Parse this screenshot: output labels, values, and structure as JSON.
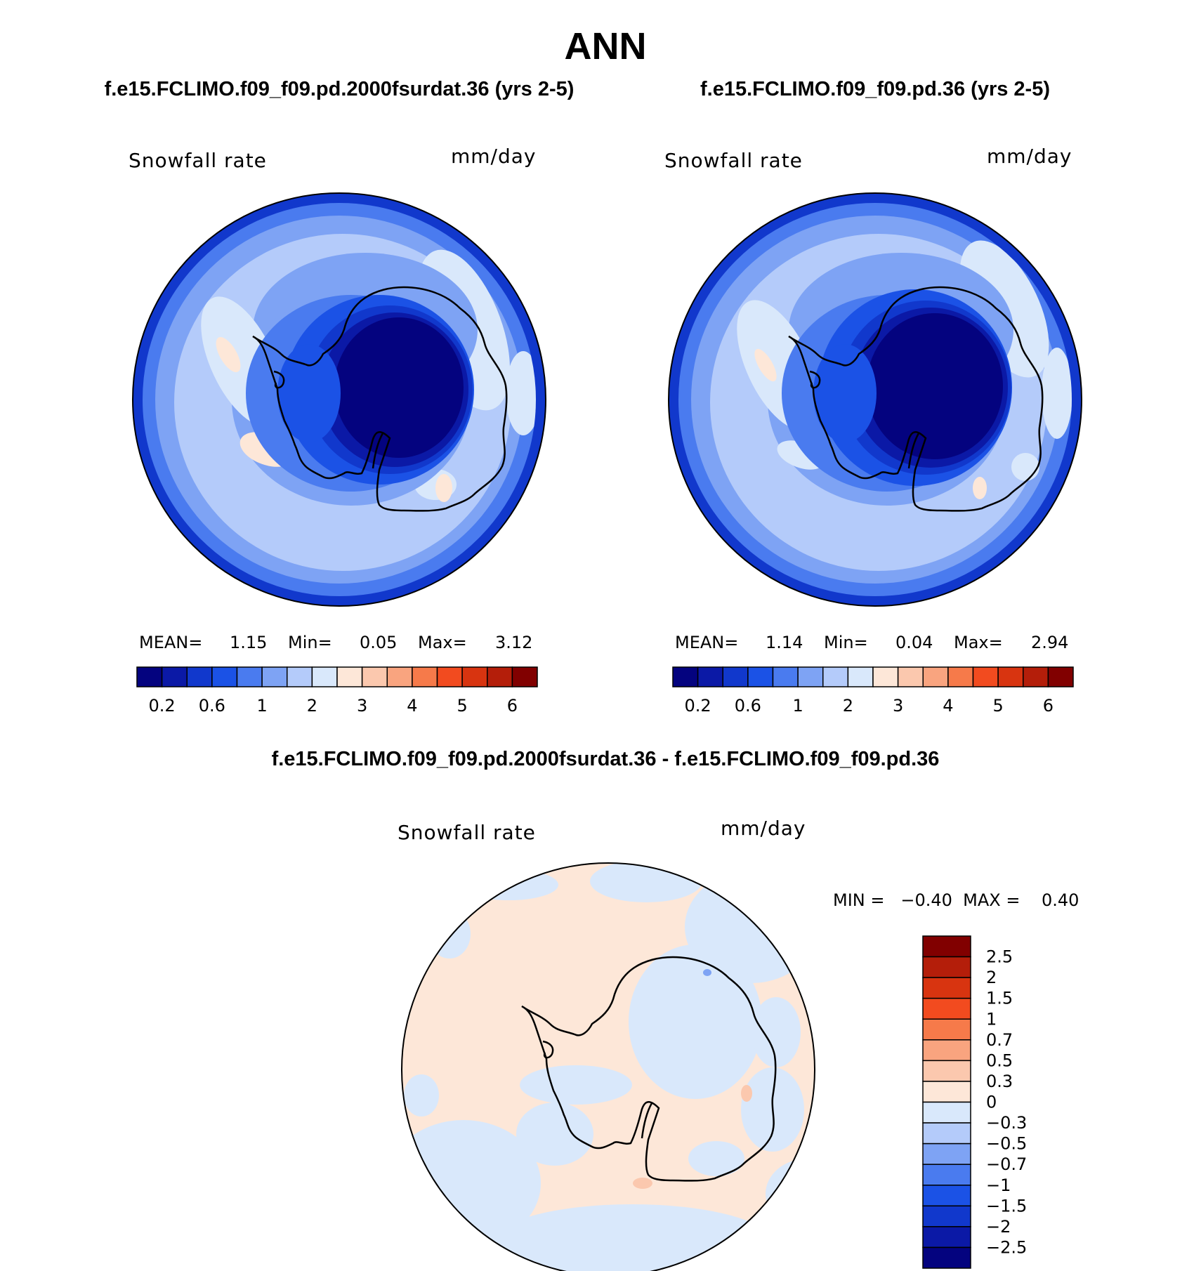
{
  "page": {
    "title": "ANN"
  },
  "chart_data": [
    {
      "type": "heatmap",
      "projection": "south-polar-stereographic",
      "title": "f.e15.FCLIMO.f09_f09.pd.2000fsurdat.36 (yrs 2-5)",
      "variable_label": "Snowfall rate",
      "units_label": "mm/day",
      "stats": [
        {
          "label": "MEAN=",
          "value": "1.15"
        },
        {
          "label": "Min=",
          "value": "0.05"
        },
        {
          "label": "Max=",
          "value": "3.12"
        }
      ],
      "colorbar": {
        "orientation": "horizontal",
        "levels": [
          0.1,
          0.2,
          0.4,
          0.6,
          0.8,
          1,
          1.5,
          2,
          2.5,
          3,
          3.5,
          4,
          4.5,
          5,
          5.5,
          6
        ],
        "tick_labels": [
          "0.2",
          "0.6",
          "1",
          "2",
          "3",
          "4",
          "5",
          "6"
        ],
        "colors": [
          "#04037f",
          "#0b19a6",
          "#1138cc",
          "#1b52e6",
          "#4a7bef",
          "#7ea3f4",
          "#b4cbfa",
          "#d9e8fb",
          "#fde7d8",
          "#fbc8ae",
          "#f9a47f",
          "#f67a4a",
          "#f24b1f",
          "#d83410",
          "#b41e0a",
          "#810000"
        ]
      }
    },
    {
      "type": "heatmap",
      "projection": "south-polar-stereographic",
      "title": "f.e15.FCLIMO.f09_f09.pd.36 (yrs 2-5)",
      "variable_label": "Snowfall rate",
      "units_label": "mm/day",
      "stats": [
        {
          "label": "MEAN=",
          "value": "1.14"
        },
        {
          "label": "Min=",
          "value": "0.04"
        },
        {
          "label": "Max=",
          "value": "2.94"
        }
      ],
      "colorbar": {
        "orientation": "horizontal",
        "levels": [
          0.1,
          0.2,
          0.4,
          0.6,
          0.8,
          1,
          1.5,
          2,
          2.5,
          3,
          3.5,
          4,
          4.5,
          5,
          5.5,
          6
        ],
        "tick_labels": [
          "0.2",
          "0.6",
          "1",
          "2",
          "3",
          "4",
          "5",
          "6"
        ],
        "colors": [
          "#04037f",
          "#0b19a6",
          "#1138cc",
          "#1b52e6",
          "#4a7bef",
          "#7ea3f4",
          "#b4cbfa",
          "#d9e8fb",
          "#fde7d8",
          "#fbc8ae",
          "#f9a47f",
          "#f67a4a",
          "#f24b1f",
          "#d83410",
          "#b41e0a",
          "#810000"
        ]
      }
    },
    {
      "type": "heatmap",
      "projection": "south-polar-stereographic",
      "title": "f.e15.FCLIMO.f09_f09.pd.2000fsurdat.36 - f.e15.FCLIMO.f09_f09.pd.36",
      "variable_label": "Snowfall rate",
      "units_label": "mm/day",
      "range_text": "MIN =   −0.40  MAX =    0.40",
      "range": {
        "min": -0.4,
        "max": 0.4
      },
      "colorbar": {
        "orientation": "vertical",
        "tick_labels": [
          "2.5",
          "2",
          "1.5",
          "1",
          "0.7",
          "0.5",
          "0.3",
          "0",
          "−0.3",
          "−0.5",
          "−0.7",
          "−1",
          "−1.5",
          "−2",
          "−2.5"
        ],
        "colors": [
          "#810000",
          "#b41e0a",
          "#d83410",
          "#f24b1f",
          "#f67a4a",
          "#f9a47f",
          "#fbc8ae",
          "#fde7d8",
          "#d9e8fb",
          "#b4cbfa",
          "#7ea3f4",
          "#4a7bef",
          "#1b52e6",
          "#1138cc",
          "#0b19a6",
          "#04037f"
        ]
      }
    }
  ]
}
